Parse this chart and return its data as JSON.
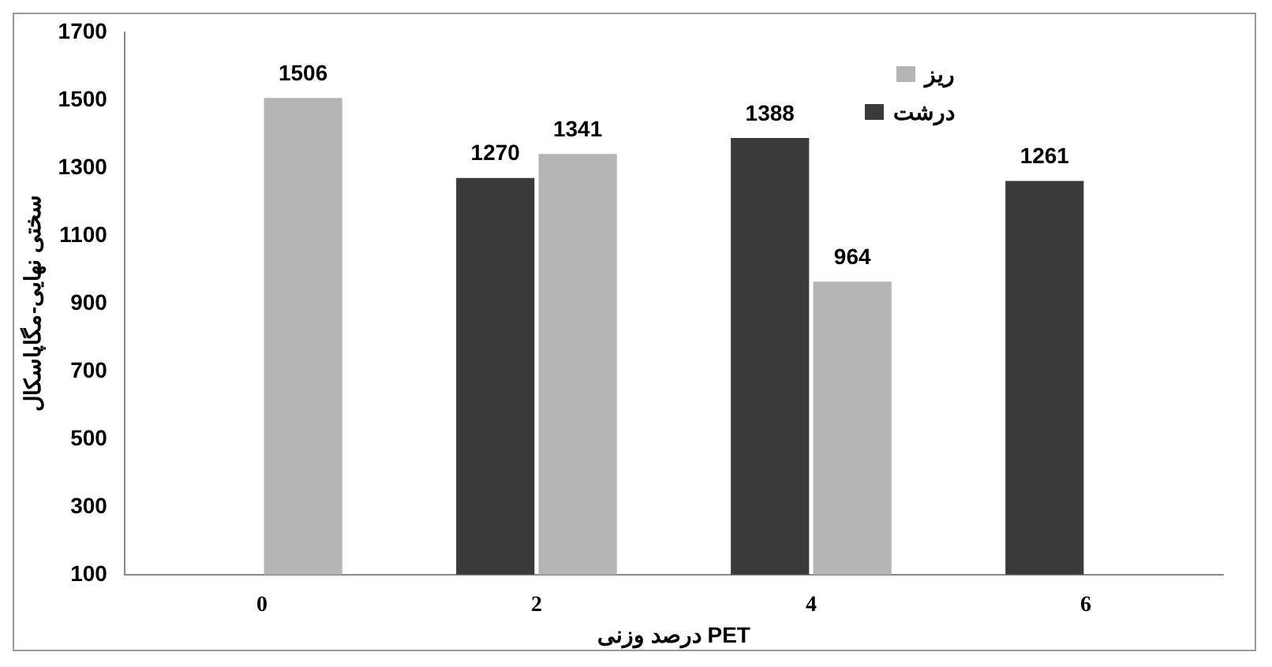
{
  "chart_data": {
    "type": "bar",
    "categories": [
      "0",
      "2",
      "4",
      "6"
    ],
    "series": [
      {
        "name": "درشت",
        "color": "#3a3a3a",
        "values": [
          null,
          1270,
          1388,
          1261
        ]
      },
      {
        "name": "ریز",
        "color": "#b5b5b5",
        "values": [
          1506,
          1341,
          964,
          null
        ]
      }
    ],
    "ylim": [
      100,
      1700
    ],
    "yticks": [
      100,
      300,
      500,
      700,
      900,
      1100,
      1300,
      1500,
      1700
    ],
    "ylabel": "سختی نهایی-مگاپاسکال",
    "xlabel": "درصد وزنی PET",
    "data_labels": true,
    "grid": false,
    "legend": "top right"
  }
}
